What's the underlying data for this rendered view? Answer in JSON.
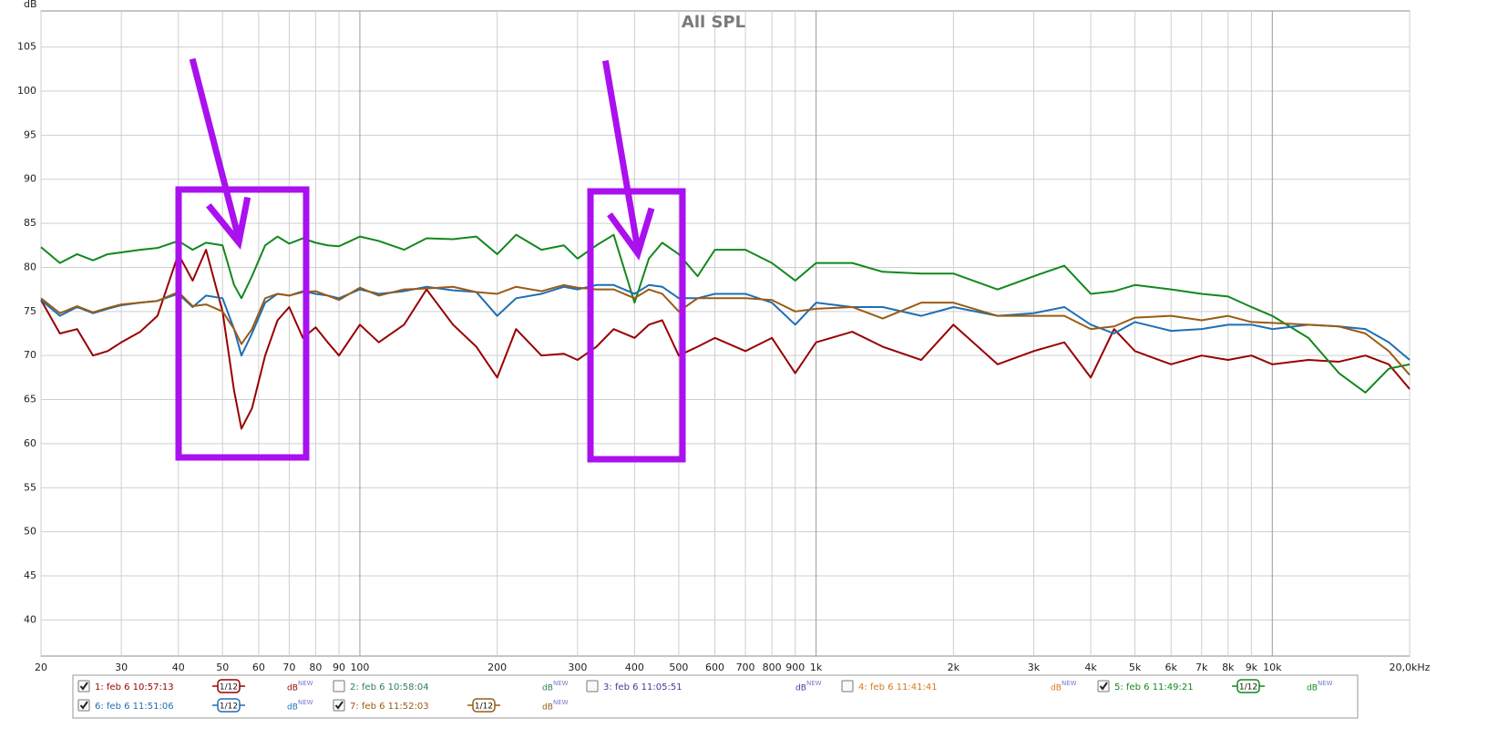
{
  "chart_data": {
    "type": "line",
    "title": "All SPL",
    "y_label": "dB",
    "xscale": "log",
    "grid": true,
    "xlim": [
      20,
      20000
    ],
    "ylim": [
      35.9,
      109.1
    ],
    "yticks": [
      40,
      45,
      50,
      55,
      60,
      65,
      70,
      75,
      80,
      85,
      90,
      95,
      100,
      105
    ],
    "xticks": [
      20,
      30,
      40,
      50,
      60,
      70,
      80,
      90,
      100,
      200,
      300,
      400,
      500,
      600,
      700,
      800,
      900,
      {
        "value": 1000,
        "label": "1k"
      },
      {
        "value": 2000,
        "label": "2k"
      },
      {
        "value": 3000,
        "label": "3k"
      },
      {
        "value": 4000,
        "label": "4k"
      },
      {
        "value": 5000,
        "label": "5k"
      },
      {
        "value": 6000,
        "label": "6k"
      },
      {
        "value": 7000,
        "label": "7k"
      },
      {
        "value": 8000,
        "label": "8k"
      },
      {
        "value": 9000,
        "label": "9k"
      },
      {
        "value": 10000,
        "label": "10k"
      },
      {
        "value": 20000,
        "label": "20,0kHz"
      }
    ],
    "x": [
      20,
      22,
      24,
      26,
      28,
      30,
      33,
      36,
      40,
      43,
      46,
      50,
      53,
      55,
      58,
      62,
      66,
      70,
      75,
      80,
      85,
      90,
      100,
      110,
      125,
      140,
      160,
      180,
      200,
      220,
      250,
      280,
      300,
      330,
      360,
      400,
      430,
      460,
      500,
      550,
      600,
      700,
      800,
      900,
      1000,
      1200,
      1400,
      1700,
      2000,
      2500,
      3000,
      3500,
      4000,
      4500,
      5000,
      6000,
      7000,
      8000,
      9000,
      10000,
      12000,
      14000,
      16000,
      18000,
      20000
    ],
    "series": [
      {
        "name": "1: feb 6 10:57:13",
        "color": "#990000",
        "checked": true,
        "smoothing": "1/12",
        "unit": "dB",
        "unit_badge": "NEW",
        "values": [
          76.3,
          72.5,
          73,
          70,
          70.5,
          71.5,
          72.7,
          74.5,
          81.5,
          78.5,
          82,
          75,
          66,
          61.7,
          64,
          70,
          74,
          75.5,
          72,
          73.2,
          71.5,
          70,
          73.5,
          71.5,
          73.5,
          77.5,
          73.5,
          71,
          67.5,
          73,
          70,
          70.2,
          69.5,
          71,
          73,
          72,
          73.5,
          74,
          70,
          71,
          72,
          70.5,
          72,
          68,
          71.5,
          72.7,
          71,
          69.5,
          73.5,
          69,
          70.5,
          71.5,
          67.5,
          73,
          70.5,
          69,
          70,
          69.5,
          70,
          69,
          69.5,
          69.3,
          70,
          69,
          66.2
        ]
      },
      {
        "name": "2: feb 6 10:58:04",
        "color": "#2e7d5a",
        "checked": false,
        "unit": "dB",
        "unit_badge": "NEW",
        "values": [
          null,
          null,
          null,
          null,
          null,
          null,
          null,
          null,
          null,
          null,
          null,
          null,
          null,
          null,
          null,
          null,
          null,
          null,
          null,
          null,
          null,
          null,
          null,
          null,
          null,
          null,
          null,
          null,
          null,
          null,
          null,
          null,
          null,
          null,
          null,
          null,
          null,
          null,
          null,
          null,
          null,
          null,
          null,
          null,
          null,
          null,
          null,
          null,
          null,
          null,
          null,
          null,
          null,
          null,
          null,
          null,
          null,
          null,
          null,
          null,
          null,
          null,
          null,
          null,
          null
        ]
      },
      {
        "name": "3: feb 6 11:05:51",
        "color": "#3e3e9a",
        "checked": false,
        "unit": "dB",
        "unit_badge": "NEW",
        "values": [
          null,
          null,
          null,
          null,
          null,
          null,
          null,
          null,
          null,
          null,
          null,
          null,
          null,
          null,
          null,
          null,
          null,
          null,
          null,
          null,
          null,
          null,
          null,
          null,
          null,
          null,
          null,
          null,
          null,
          null,
          null,
          null,
          null,
          null,
          null,
          null,
          null,
          null,
          null,
          null,
          null,
          null,
          null,
          null,
          null,
          null,
          null,
          null,
          null,
          null,
          null,
          null,
          null,
          null,
          null,
          null,
          null,
          null,
          null,
          null,
          null,
          null,
          null,
          null,
          null
        ]
      },
      {
        "name": "4: feb 6 11:41:41",
        "color": "#d47a1b",
        "checked": false,
        "unit": "dB",
        "unit_badge": "NEW",
        "values": [
          null,
          null,
          null,
          null,
          null,
          null,
          null,
          null,
          null,
          null,
          null,
          null,
          null,
          null,
          null,
          null,
          null,
          null,
          null,
          null,
          null,
          null,
          null,
          null,
          null,
          null,
          null,
          null,
          null,
          null,
          null,
          null,
          null,
          null,
          null,
          null,
          null,
          null,
          null,
          null,
          null,
          null,
          null,
          null,
          null,
          null,
          null,
          null,
          null,
          null,
          null,
          null,
          null,
          null,
          null,
          null,
          null,
          null,
          null,
          null,
          null,
          null,
          null,
          null,
          null
        ]
      },
      {
        "name": "5: feb 6 11:49:21",
        "color": "#12881c",
        "checked": true,
        "smoothing": "1/12",
        "unit": "dB",
        "unit_badge": "NEW",
        "values": [
          82.3,
          80.5,
          81.5,
          80.8,
          81.5,
          81.7,
          82,
          82.2,
          83,
          82,
          82.8,
          82.5,
          78,
          76.5,
          79,
          82.5,
          83.5,
          82.7,
          83.3,
          82.8,
          82.5,
          82.4,
          83.5,
          83,
          82,
          83.3,
          83.2,
          83.5,
          81.5,
          83.7,
          82,
          82.5,
          81,
          82.5,
          83.7,
          76,
          81,
          82.8,
          81.5,
          79,
          82,
          82,
          80.5,
          78.5,
          80.5,
          80.5,
          79.5,
          79.3,
          79.3,
          77.5,
          79,
          80.2,
          77,
          77.3,
          78,
          77.5,
          77,
          76.7,
          75.5,
          74.5,
          72,
          68,
          65.8,
          68.5,
          69
        ]
      },
      {
        "name": "6: feb 6 11:51:06",
        "color": "#1f6fb5",
        "checked": true,
        "smoothing": "1/12",
        "unit": "dB",
        "unit_badge": "NEW",
        "values": [
          76.3,
          74.5,
          75.5,
          74.8,
          75.3,
          75.7,
          76,
          76.2,
          77,
          75.5,
          76.8,
          76.5,
          73,
          70,
          72.5,
          76,
          77,
          76.8,
          77.3,
          77,
          76.8,
          76.5,
          77.5,
          77,
          77.3,
          77.8,
          77.4,
          77.2,
          74.5,
          76.5,
          77,
          77.8,
          77.5,
          78,
          78,
          77,
          78,
          77.8,
          76.5,
          76.5,
          77,
          77,
          76,
          73.5,
          76,
          75.5,
          75.5,
          74.5,
          75.5,
          74.5,
          74.8,
          75.5,
          73.5,
          72.5,
          73.8,
          72.8,
          73,
          73.5,
          73.5,
          73,
          73.5,
          73.3,
          73,
          71.5,
          69.5
        ]
      },
      {
        "name": "7: feb 6 11:52:03",
        "color": "#9a5b14",
        "checked": true,
        "smoothing": "1/12",
        "unit": "dB",
        "unit_badge": "NEW",
        "values": [
          76.5,
          74.8,
          75.6,
          74.9,
          75.4,
          75.8,
          76,
          76.2,
          77.2,
          75.6,
          75.8,
          75,
          73,
          71.3,
          73,
          76.5,
          77,
          76.8,
          77.2,
          77.3,
          76.8,
          76.3,
          77.7,
          76.8,
          77.5,
          77.6,
          77.8,
          77.2,
          77,
          77.8,
          77.3,
          78,
          77.7,
          77.5,
          77.5,
          76.5,
          77.5,
          77,
          75,
          76.5,
          76.5,
          76.5,
          76.3,
          75,
          75.3,
          75.5,
          74.2,
          76,
          76,
          74.5,
          74.5,
          74.5,
          73,
          73.3,
          74.3,
          74.5,
          74,
          74.5,
          73.8,
          73.7,
          73.5,
          73.3,
          72.5,
          70.5,
          67.8
        ]
      }
    ]
  }
}
